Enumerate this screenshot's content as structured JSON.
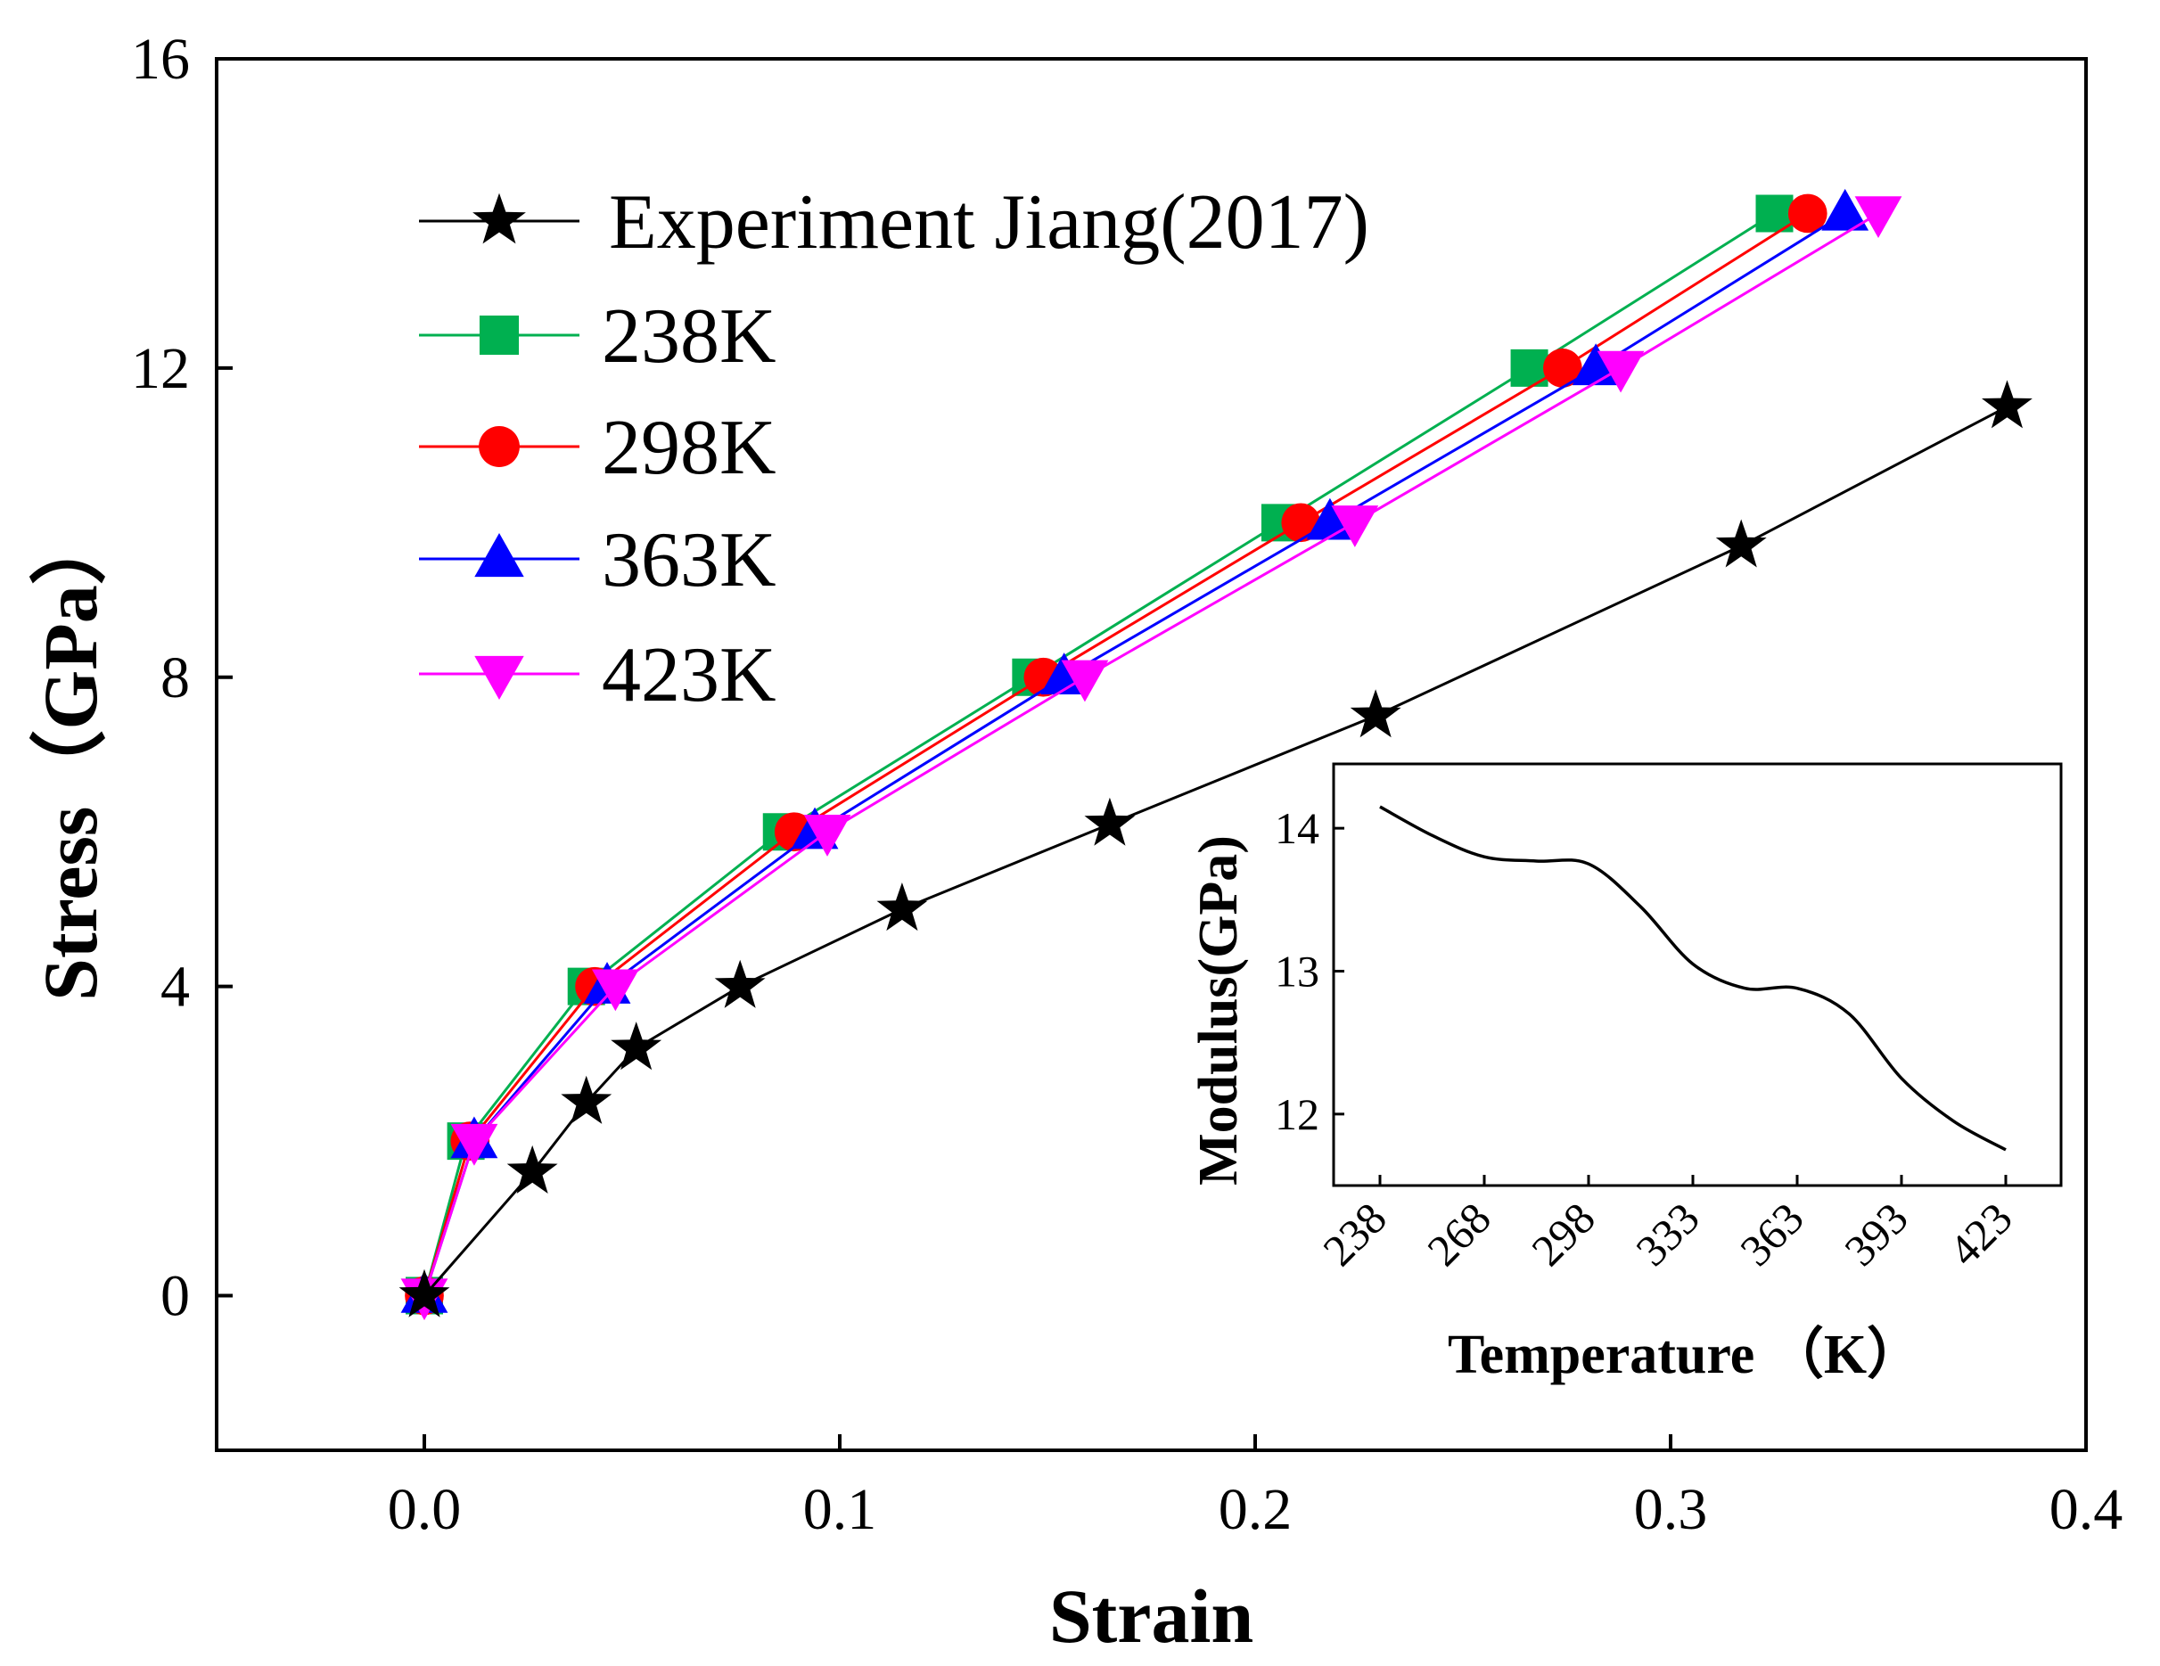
{
  "chart_data": [
    {
      "type": "line",
      "xlabel": "Strain",
      "ylabel": "Stress（GPa）",
      "xlim": [
        -0.05,
        0.4
      ],
      "ylim": [
        -2,
        16
      ],
      "xticks": [
        "0.0",
        "0.1",
        "0.2",
        "0.3",
        "0.4"
      ],
      "xtick_values": [
        0.0,
        0.1,
        0.2,
        0.3,
        0.4
      ],
      "yticks": [
        "0",
        "4",
        "8",
        "12",
        "16"
      ],
      "ytick_values": [
        0,
        4,
        8,
        12,
        16
      ],
      "legend_position": "top-left",
      "grid": false,
      "series": [
        {
          "name": "Experiment Jiang(2017)",
          "color": "#000000",
          "marker": "star",
          "x": [
            0.0,
            0.026,
            0.039,
            0.051,
            0.076,
            0.115,
            0.165,
            0.229,
            0.317,
            0.381
          ],
          "y": [
            0.0,
            1.6,
            2.5,
            3.2,
            4.0,
            5.0,
            6.1,
            7.5,
            9.7,
            11.5
          ]
        },
        {
          "name": "238K",
          "color": "#00b050",
          "marker": "square",
          "x": [
            0.0,
            0.01,
            0.039,
            0.086,
            0.146,
            0.206,
            0.266,
            0.325
          ],
          "y": [
            0.0,
            2.0,
            4.0,
            6.0,
            8.0,
            10.0,
            12.0,
            14.0
          ]
        },
        {
          "name": "298K",
          "color": "#ff0000",
          "marker": "circle",
          "x": [
            0.0,
            0.011,
            0.041,
            0.089,
            0.149,
            0.211,
            0.274,
            0.333
          ],
          "y": [
            0.0,
            2.0,
            4.0,
            6.0,
            8.0,
            10.0,
            12.0,
            14.0
          ]
        },
        {
          "name": "363K",
          "color": "#0000ff",
          "marker": "triangle-up",
          "x": [
            0.0,
            0.012,
            0.044,
            0.094,
            0.154,
            0.218,
            0.282,
            0.342
          ],
          "y": [
            0.0,
            2.0,
            4.0,
            6.0,
            8.0,
            10.0,
            12.0,
            14.0
          ]
        },
        {
          "name": "423K",
          "color": "#ff00ff",
          "marker": "triangle-down",
          "x": [
            0.0,
            0.012,
            0.046,
            0.097,
            0.159,
            0.224,
            0.288,
            0.35
          ],
          "y": [
            0.0,
            2.0,
            4.0,
            6.0,
            8.0,
            10.0,
            12.0,
            14.0
          ]
        }
      ]
    },
    {
      "type": "line",
      "placement": "inset, lower-right",
      "xlabel": "Temperature （K）",
      "ylabel": "Modulus(GPa)",
      "categories": [
        "238",
        "268",
        "298",
        "333",
        "363",
        "393",
        "423"
      ],
      "ylim": [
        11.5,
        14.45
      ],
      "yticks": [
        "12",
        "13",
        "14"
      ],
      "ytick_values": [
        12,
        13,
        14
      ],
      "grid": false,
      "series": [
        {
          "name": "Modulus",
          "color": "#000000",
          "x": [
            0,
            0.5,
            1,
            1.5,
            2,
            2.5,
            3,
            3.5,
            4,
            4.5,
            5,
            5.5,
            6
          ],
          "y": [
            14.15,
            13.95,
            13.8,
            13.77,
            13.75,
            13.45,
            13.05,
            12.88,
            12.88,
            12.7,
            12.25,
            11.95,
            11.75
          ]
        }
      ]
    }
  ]
}
